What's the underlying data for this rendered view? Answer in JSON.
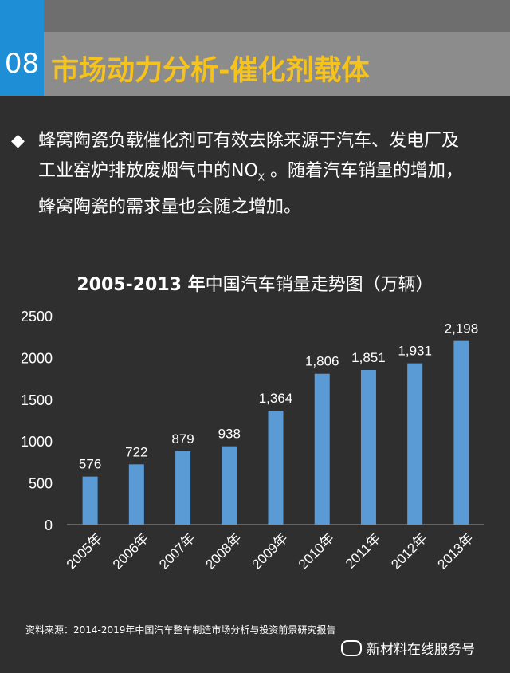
{
  "header": {
    "section_number": "08",
    "title": "市场动力分析-催化剂载体"
  },
  "bullet": {
    "text_line1": "蜂窝陶瓷负载催化剂可有效去除来源于汽车、发电厂及",
    "text_line2_pre": "工业窑炉排放废烟气中的NO",
    "text_line2_sub": "X",
    "text_line2_post": " 。随着汽车销量的增加，",
    "text_line3": "蜂窝陶瓷的需求量也会随之增加。"
  },
  "chart_title": {
    "years": "2005-2013 年",
    "rest": "中国汽车销量走势图（万辆）"
  },
  "chart_data": {
    "type": "bar",
    "title": "2005-2013 年中国汽车销量走势图（万辆）",
    "categories": [
      "2005年",
      "2006年",
      "2007年",
      "2008年",
      "2009年",
      "2010年",
      "2011年",
      "2012年",
      "2013年"
    ],
    "values": [
      576,
      722,
      879,
      938,
      1364,
      1806,
      1851,
      1931,
      2198
    ],
    "value_labels": [
      "576",
      "722",
      "879",
      "938",
      "1,364",
      "1,806",
      "1,851",
      "1,931",
      "2,198"
    ],
    "yticks": [
      "0",
      "500",
      "1000",
      "1500",
      "2000",
      "2500"
    ],
    "ylim": [
      0,
      2500
    ],
    "grid": false,
    "bar_color": "#5b9bd5"
  },
  "footer": {
    "source": "资料来源：2014-2019年中国汽车整车制造市场分析与投资前景研究报告",
    "wechat": "新材料在线服务号"
  }
}
